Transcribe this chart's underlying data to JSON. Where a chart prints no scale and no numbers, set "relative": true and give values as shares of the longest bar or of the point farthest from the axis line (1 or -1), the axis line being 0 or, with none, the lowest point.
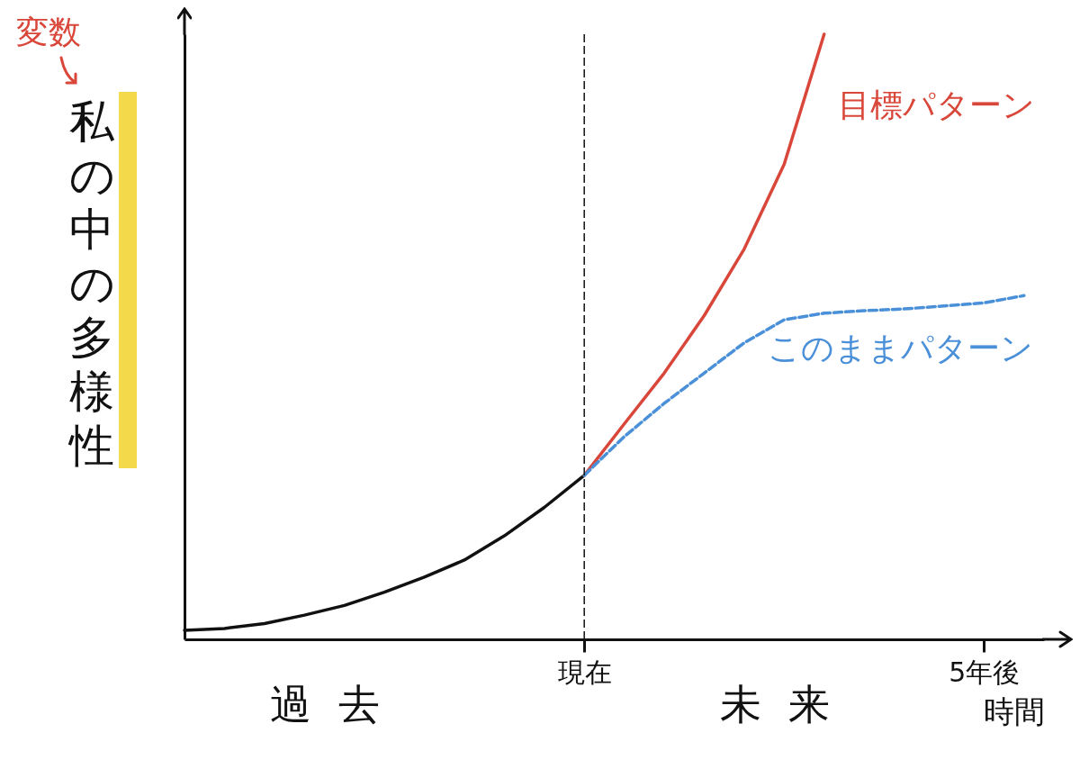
{
  "chart_data": {
    "type": "line",
    "relative": true,
    "ylabel": "私の中の多様性",
    "xlabel": "時間",
    "categories": [
      null,
      null,
      null,
      null,
      null,
      null,
      null,
      null,
      null,
      null,
      "現在",
      null,
      null,
      null,
      null,
      null,
      null,
      null,
      null,
      null,
      "5年後",
      null
    ],
    "grid": false,
    "marker": "none",
    "tick_labels": "x",
    "annotations": [
      "変数",
      "過去",
      "未来"
    ],
    "ref_lines": [
      {
        "axis": "x",
        "value": "現在",
        "line_style": "dashed",
        "color": "#111111"
      }
    ],
    "series": [
      {
        "color": "#111111",
        "line_style": "solid",
        "values": [
          0.015,
          0.018,
          0.026,
          0.04,
          0.056,
          0.078,
          0.103,
          0.131,
          0.171,
          0.218,
          0.271,
          null,
          null,
          null,
          null,
          null,
          null,
          null,
          null,
          null,
          null,
          null
        ]
      },
      {
        "name": "目標パターン",
        "color": "#d9463a",
        "line_style": "solid",
        "values": [
          null,
          null,
          null,
          null,
          null,
          null,
          null,
          null,
          null,
          null,
          0.271,
          0.356,
          0.44,
          0.535,
          0.645,
          0.785,
          1,
          null,
          null,
          null,
          null,
          null
        ]
      },
      {
        "name": "このままパターン",
        "color": "#4a90d9",
        "line_style": "dashed",
        "values": [
          null,
          null,
          null,
          null,
          null,
          null,
          null,
          null,
          null,
          null,
          0.271,
          0.335,
          0.39,
          0.44,
          0.49,
          0.528,
          0.539,
          0.543,
          0.546,
          0.551,
          0.556,
          0.568
        ]
      }
    ]
  }
}
